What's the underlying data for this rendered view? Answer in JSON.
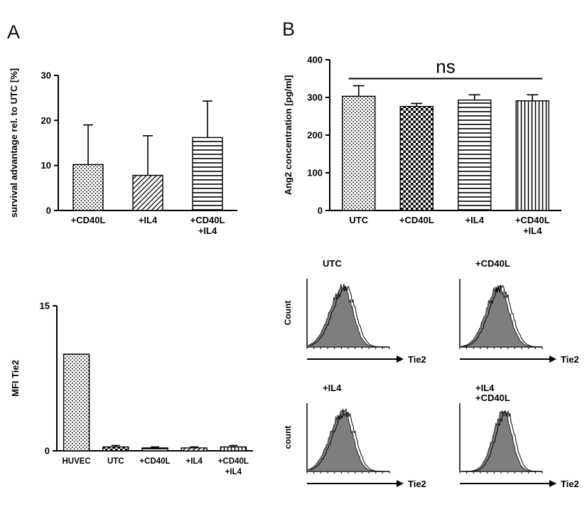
{
  "panels": {
    "a_label": "A",
    "b_label": "B"
  },
  "chart_data": [
    {
      "id": "survival-bar-chart",
      "type": "bar",
      "panel": "A",
      "title": "",
      "xlabel": "",
      "ylabel": "survival advantage rel. to UTC [%]",
      "ylim": [
        0,
        30
      ],
      "yticks": [
        0,
        10,
        20,
        30
      ],
      "categories": [
        [
          "+CD40L"
        ],
        [
          "+IL4"
        ],
        [
          "+CD40L",
          "+IL4"
        ]
      ],
      "values": [
        10.2,
        7.8,
        16.2
      ],
      "errors": [
        8.8,
        8.8,
        8.1
      ],
      "patterns": [
        "dots",
        "diagonal",
        "hlines"
      ],
      "annotation": null,
      "grid": false,
      "legend": null
    },
    {
      "id": "ang2-bar-chart",
      "type": "bar",
      "panel": "B",
      "title": "",
      "xlabel": "",
      "ylabel": "Ang2 concentration [pg/ml]",
      "ylim": [
        0,
        400
      ],
      "yticks": [
        0,
        100,
        200,
        300,
        400
      ],
      "categories": [
        [
          "UTC"
        ],
        [
          "+CD40L"
        ],
        [
          "+IL4"
        ],
        [
          "+CD40L",
          "+IL4"
        ]
      ],
      "values": [
        303,
        276,
        293,
        291
      ],
      "errors": [
        28,
        8,
        14,
        16
      ],
      "patterns": [
        "dots",
        "checker",
        "hlines",
        "vlines"
      ],
      "annotation": {
        "text": "ns",
        "y": 350
      },
      "grid": false,
      "legend": null
    },
    {
      "id": "mfi-tie2-bar-chart",
      "type": "bar",
      "panel": "A",
      "title": "",
      "xlabel": "",
      "ylabel": "MFI Tie2",
      "ylim": [
        0,
        15
      ],
      "yticks": [
        0,
        15
      ],
      "categories": [
        [
          "HUVEC"
        ],
        [
          "UTC"
        ],
        [
          "+CD40L"
        ],
        [
          "+IL4"
        ],
        [
          "+CD40L",
          "+IL4"
        ]
      ],
      "values": [
        10.0,
        0.4,
        0.3,
        0.3,
        0.4
      ],
      "errors": [
        0,
        0.15,
        0.1,
        0.1,
        0.15
      ],
      "patterns": [
        "dots",
        "checker",
        "hlines",
        "diagonal",
        "vlines"
      ],
      "annotation": null,
      "grid": false,
      "legend": null
    },
    {
      "id": "tie2-histograms",
      "type": "histogram-grid",
      "panel": "B",
      "description": "Flow cytometry Tie2 expression histograms, gray filled distribution with overlay outline",
      "cells": [
        {
          "title": [
            "UTC"
          ],
          "ylabel": "Count",
          "xlabel": "Tie2"
        },
        {
          "title": [
            "+CD40L"
          ],
          "ylabel": "",
          "xlabel": "Tie2"
        },
        {
          "title": [
            "+IL4"
          ],
          "ylabel": "count",
          "xlabel": "Tie2"
        },
        {
          "title": [
            "+IL4",
            "+CD40L"
          ],
          "ylabel": "",
          "xlabel": "Tie2"
        }
      ]
    }
  ]
}
